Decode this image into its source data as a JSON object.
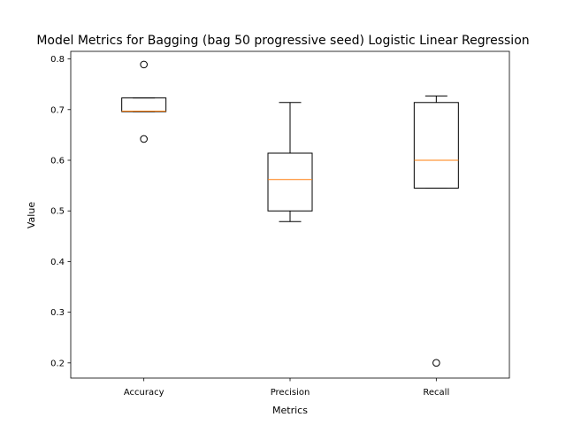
{
  "chart_data": {
    "type": "box",
    "title": "Model Metrics for Bagging (bag 50 progressive seed) Logistic Linear Regression",
    "xlabel": "Metrics",
    "ylabel": "Value",
    "ylim": [
      0.17,
      0.815
    ],
    "yticks": [
      0.2,
      0.3,
      0.4,
      0.5,
      0.6,
      0.7,
      0.8
    ],
    "grid": false,
    "categories": [
      "Accuracy",
      "Precision",
      "Recall"
    ],
    "boxes": [
      {
        "name": "Accuracy",
        "whisker_low": 0.696,
        "q1": 0.696,
        "median": 0.697,
        "q3": 0.723,
        "whisker_high": 0.723,
        "outliers": [
          0.789,
          0.642
        ]
      },
      {
        "name": "Precision",
        "whisker_low": 0.479,
        "q1": 0.5,
        "median": 0.562,
        "q3": 0.614,
        "whisker_high": 0.714,
        "outliers": []
      },
      {
        "name": "Recall",
        "whisker_low": 0.545,
        "q1": 0.545,
        "median": 0.6,
        "q3": 0.714,
        "whisker_high": 0.727,
        "outliers": [
          0.2
        ]
      }
    ],
    "colors": {
      "box": "#000000",
      "median": "#ff7f0e",
      "outlier": "#000000"
    }
  }
}
